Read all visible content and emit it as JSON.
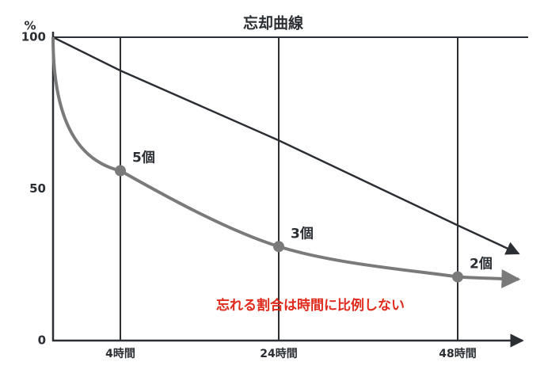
{
  "chart_data": {
    "type": "line",
    "title": "忘却曲線",
    "y_label": "%",
    "categories": [
      null,
      "4時間",
      "24時間",
      "48時間"
    ],
    "series": [
      {
        "color": "#7a7a7a",
        "values": [
          100,
          56,
          31,
          21
        ],
        "point_labels": [
          null,
          "5個",
          "3個",
          "2個"
        ]
      },
      {
        "color": "#2b2f33",
        "values": [
          100,
          89,
          66,
          38
        ]
      }
    ],
    "annotation": "忘れる割合は時間に比例しない",
    "annotation_color": "#e02a1c",
    "ylim": [
      0,
      100
    ],
    "yticks": [
      0,
      50,
      100
    ]
  }
}
